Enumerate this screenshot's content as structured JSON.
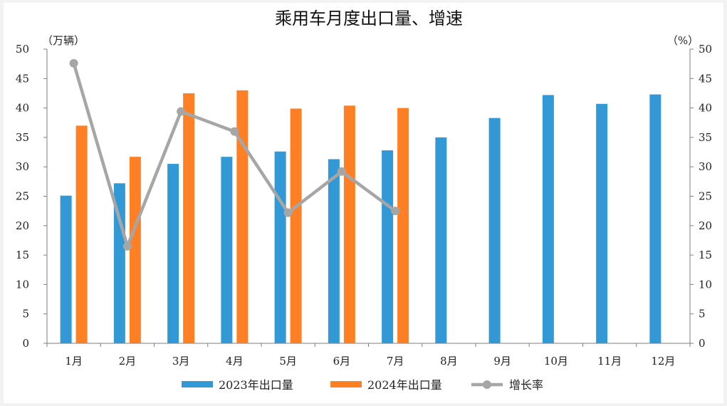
{
  "chart_data": {
    "type": "bar",
    "title": "乘用车月度出口量、增速",
    "categories": [
      "1月",
      "2月",
      "3月",
      "4月",
      "5月",
      "6月",
      "7月",
      "8月",
      "9月",
      "10月",
      "11月",
      "12月"
    ],
    "series": [
      {
        "name": "2023年出口量",
        "kind": "bar",
        "axis": "left",
        "color": "#3399d6",
        "values": [
          25.1,
          27.2,
          30.5,
          31.7,
          32.6,
          31.3,
          32.8,
          35.0,
          38.3,
          42.2,
          40.7,
          42.3
        ]
      },
      {
        "name": "2024年出口量",
        "kind": "bar",
        "axis": "left",
        "color": "#ff7f24",
        "values": [
          37.0,
          31.7,
          42.5,
          43.0,
          39.9,
          40.4,
          40.0,
          null,
          null,
          null,
          null,
          null
        ]
      },
      {
        "name": "增长率",
        "kind": "line",
        "axis": "right",
        "color": "#a6a6a6",
        "values": [
          47.6,
          16.5,
          39.4,
          36.0,
          22.2,
          29.2,
          22.5,
          null,
          null,
          null,
          null,
          null
        ]
      }
    ],
    "ylabel_left": "（万辆）",
    "ylabel_right": "（%）",
    "ylim_left": [
      0,
      50
    ],
    "ylim_right": [
      0,
      50
    ],
    "yticks_left": [
      "0",
      "5",
      "10",
      "15",
      "20",
      "25",
      "30",
      "35",
      "40",
      "45",
      "50"
    ],
    "yticks_right": [
      "0",
      "5",
      "10",
      "15",
      "20",
      "25",
      "30",
      "35",
      "40",
      "45",
      "50"
    ],
    "grid": false,
    "legend_position": "bottom"
  }
}
